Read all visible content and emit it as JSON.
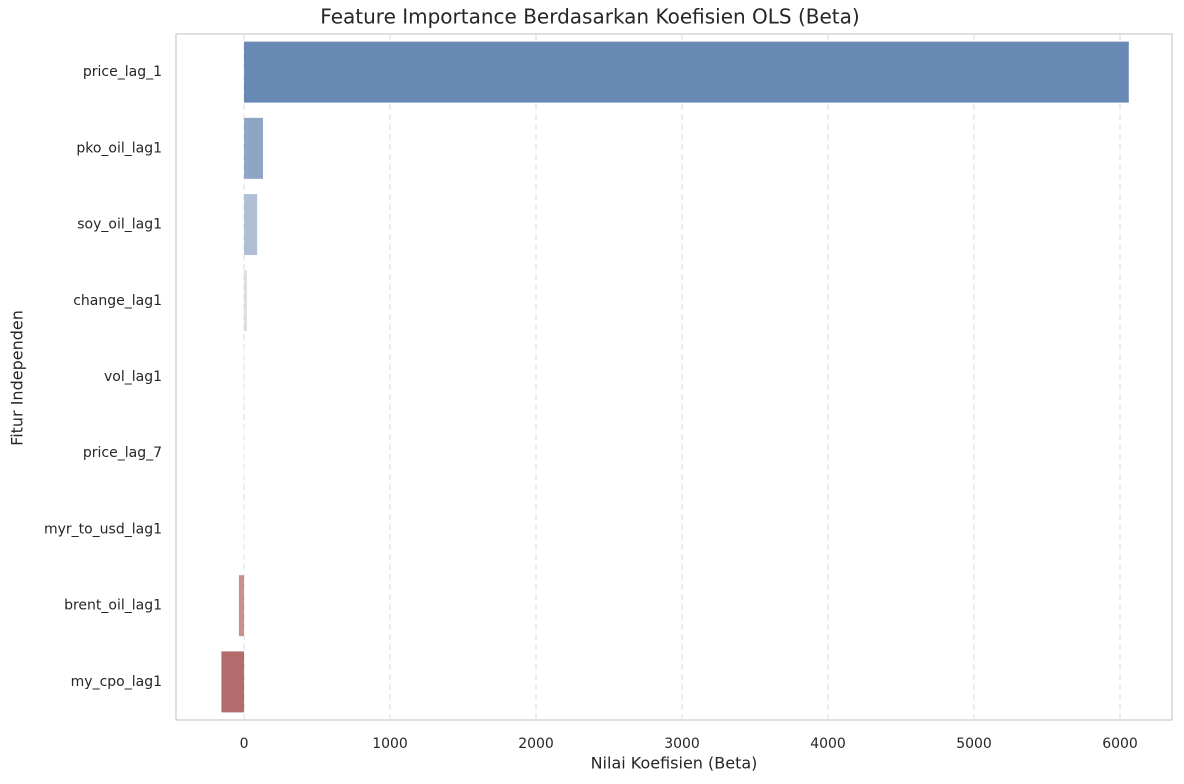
{
  "chart_data": {
    "type": "barh",
    "title": "Feature Importance Berdasarkan Koefisien OLS (Beta)",
    "x_label": "Nilai Koefisien (Beta)",
    "y_label": "Fitur Independen",
    "categories": [
      "price_lag_1",
      "pko_oil_lag1",
      "soy_oil_lag1",
      "change_lag1",
      "vol_lag1",
      "price_lag_7",
      "myr_to_usd_lag1",
      "brent_oil_lag1",
      "my_cpo_lag1"
    ],
    "values": [
      6060,
      130,
      90,
      20,
      5,
      3,
      -2,
      -35,
      -155
    ],
    "colors": [
      "#6889b4",
      "#8fa5c4",
      "#b0bfd4",
      "#dcdfe5",
      "#f3f3f3",
      "#f6f0f0",
      "#f8f1f1",
      "#c99090",
      "#b36b6b"
    ],
    "xlim": [
      -466,
      6356
    ],
    "xticks": [
      0,
      1000,
      2000,
      3000,
      4000,
      5000,
      6000
    ],
    "grid": true
  }
}
